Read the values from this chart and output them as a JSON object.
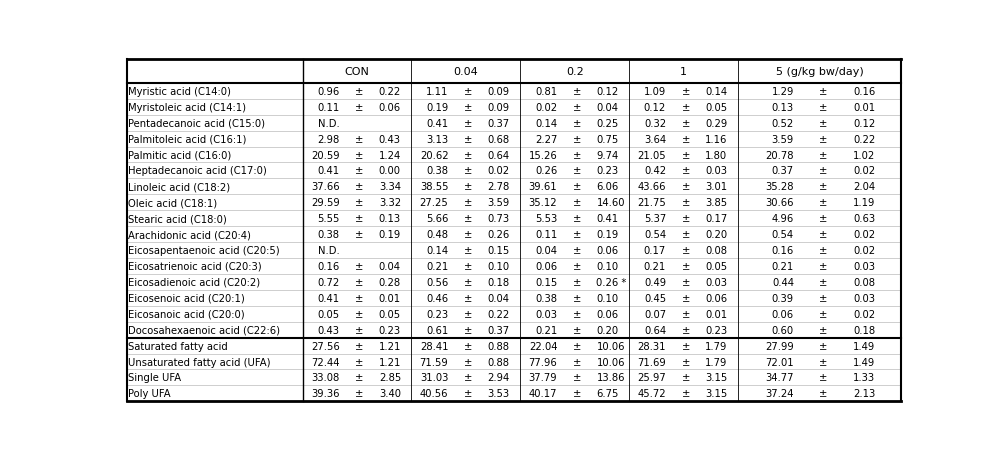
{
  "col_groups": [
    "CON",
    "0.04",
    "0.2",
    "1",
    "5 (g/kg bw/day)"
  ],
  "rows": [
    [
      "Myristic acid (C14:0)",
      "0.96",
      "0.22",
      "1.11",
      "0.09",
      "0.81",
      "0.12",
      "1.09",
      "0.14",
      "1.29",
      "0.16",
      ""
    ],
    [
      "Myristoleic acid (C14:1)",
      "0.11",
      "0.06",
      "0.19",
      "0.09",
      "0.02",
      "0.04",
      "0.12",
      "0.05",
      "0.13",
      "0.01",
      ""
    ],
    [
      "Pentadecanoic acid (C15:0)",
      "N.D.",
      "",
      "0.41",
      "0.37",
      "0.14",
      "0.25",
      "0.32",
      "0.29",
      "0.52",
      "0.12",
      ""
    ],
    [
      "Palmitoleic acid (C16:1)",
      "2.98",
      "0.43",
      "3.13",
      "0.68",
      "2.27",
      "0.75",
      "3.64",
      "1.16",
      "3.59",
      "0.22",
      ""
    ],
    [
      "Palmitic acid (C16:0)",
      "20.59",
      "1.24",
      "20.62",
      "0.64",
      "15.26",
      "9.74",
      "21.05",
      "1.80",
      "20.78",
      "1.02",
      ""
    ],
    [
      "Heptadecanoic acid (C17:0)",
      "0.41",
      "0.00",
      "0.38",
      "0.02",
      "0.26",
      "0.23",
      "0.42",
      "0.03",
      "0.37",
      "0.02",
      ""
    ],
    [
      "Linoleic acid (C18:2)",
      "37.66",
      "3.34",
      "38.55",
      "2.78",
      "39.61",
      "6.06",
      "43.66",
      "3.01",
      "35.28",
      "2.04",
      ""
    ],
    [
      "Oleic acid (C18:1)",
      "29.59",
      "3.32",
      "27.25",
      "3.59",
      "35.12",
      "14.60",
      "21.75",
      "3.85",
      "30.66",
      "1.19",
      ""
    ],
    [
      "Stearic acid (C18:0)",
      "5.55",
      "0.13",
      "5.66",
      "0.73",
      "5.53",
      "0.41",
      "5.37",
      "0.17",
      "4.96",
      "0.63",
      ""
    ],
    [
      "Arachidonic acid (C20:4)",
      "0.38",
      "0.19",
      "0.48",
      "0.26",
      "0.11",
      "0.19",
      "0.54",
      "0.20",
      "0.54",
      "0.02",
      ""
    ],
    [
      "Eicosapentaenoic acid (C20:5)",
      "N.D.",
      "",
      "0.14",
      "0.15",
      "0.04",
      "0.06",
      "0.17",
      "0.08",
      "0.16",
      "0.02",
      ""
    ],
    [
      "Eicosatrienoic acid (C20:3)",
      "0.16",
      "0.04",
      "0.21",
      "0.10",
      "0.06",
      "0.10",
      "0.21",
      "0.05",
      "0.21",
      "0.03",
      ""
    ],
    [
      "Eicosadienoic acid (C20:2)",
      "0.72",
      "0.28",
      "0.56",
      "0.18",
      "0.15",
      "0.26",
      "0.49",
      "0.03",
      "0.44",
      "0.08",
      "*"
    ],
    [
      "Eicosenoic acid (C20:1)",
      "0.41",
      "0.01",
      "0.46",
      "0.04",
      "0.38",
      "0.10",
      "0.45",
      "0.06",
      "0.39",
      "0.03",
      ""
    ],
    [
      "Eicosanoic acid (C20:0)",
      "0.05",
      "0.05",
      "0.23",
      "0.22",
      "0.03",
      "0.06",
      "0.07",
      "0.01",
      "0.06",
      "0.02",
      ""
    ],
    [
      "Docosahexaenoic acid (C22:6)",
      "0.43",
      "0.23",
      "0.61",
      "0.37",
      "0.21",
      "0.20",
      "0.64",
      "0.23",
      "0.60",
      "0.18",
      ""
    ]
  ],
  "summary_rows": [
    [
      "Saturated fatty acid",
      "27.56",
      "1.21",
      "28.41",
      "0.88",
      "22.04",
      "10.06",
      "28.31",
      "1.79",
      "27.99",
      "1.49",
      ""
    ],
    [
      "Unsaturated fatty acid (UFA)",
      "72.44",
      "1.21",
      "71.59",
      "0.88",
      "77.96",
      "10.06",
      "71.69",
      "1.79",
      "72.01",
      "1.49",
      ""
    ],
    [
      "Single UFA",
      "33.08",
      "2.85",
      "31.03",
      "2.94",
      "37.79",
      "13.86",
      "25.97",
      "3.15",
      "34.77",
      "1.33",
      ""
    ],
    [
      "Poly UFA",
      "39.36",
      "3.40",
      "40.56",
      "3.53",
      "40.17",
      "6.75",
      "45.72",
      "3.15",
      "37.24",
      "2.13",
      ""
    ]
  ],
  "bg_color": "#ffffff",
  "text_color": "#000000",
  "font_size": 7.2,
  "header_font_size": 8.0,
  "col_starts": [
    0.0,
    0.228,
    0.368,
    0.508,
    0.648,
    0.788
  ],
  "col_ends": [
    0.228,
    0.368,
    0.508,
    0.648,
    0.788,
    1.0
  ]
}
